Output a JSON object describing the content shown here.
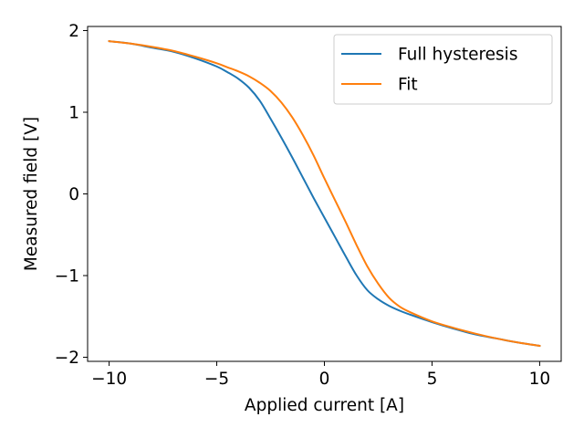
{
  "chart_data": {
    "type": "line",
    "xlabel": "Applied current [A]",
    "ylabel": "Measured field [V]",
    "xlim": [
      -11,
      11
    ],
    "ylim": [
      -2.05,
      2.05
    ],
    "xticks": [
      -10,
      -5,
      0,
      5,
      10
    ],
    "xtick_labels": [
      "−10",
      "−5",
      "0",
      "5",
      "10"
    ],
    "yticks": [
      -2,
      -1,
      0,
      1,
      2
    ],
    "ytick_labels": [
      "−2",
      "−1",
      "0",
      "1",
      "2"
    ],
    "grid": false,
    "legend_position": "top-right",
    "series": [
      {
        "name": "Full hysteresis",
        "color": "#1f77b4",
        "x": [
          -10,
          -9,
          -8,
          -7,
          -6,
          -5,
          -4.5,
          -4,
          -3.5,
          -3,
          -2.5,
          -2,
          -1.5,
          -1,
          -0.5,
          0,
          0.5,
          1,
          1.5,
          2,
          2.5,
          3,
          3.5,
          4,
          5,
          6,
          7,
          8,
          9,
          10
        ],
        "y": [
          1.87,
          1.84,
          1.79,
          1.74,
          1.66,
          1.56,
          1.49,
          1.41,
          1.3,
          1.14,
          0.92,
          0.69,
          0.45,
          0.2,
          -0.05,
          -0.29,
          -0.53,
          -0.77,
          -1.0,
          -1.18,
          -1.29,
          -1.37,
          -1.43,
          -1.48,
          -1.57,
          -1.65,
          -1.72,
          -1.77,
          -1.82,
          -1.86
        ]
      },
      {
        "name": "Fit",
        "color": "#ff7f0e",
        "x": [
          -10,
          -9,
          -8,
          -7,
          -6,
          -5,
          -4.5,
          -4,
          -3.5,
          -3,
          -2.5,
          -2,
          -1.5,
          -1,
          -0.5,
          0,
          0.5,
          1,
          1.5,
          2,
          2.5,
          3,
          3.5,
          4,
          5,
          6,
          7,
          8,
          9,
          10
        ],
        "y": [
          1.87,
          1.84,
          1.8,
          1.75,
          1.68,
          1.6,
          1.55,
          1.5,
          1.44,
          1.36,
          1.26,
          1.12,
          0.94,
          0.72,
          0.47,
          0.19,
          -0.08,
          -0.35,
          -0.63,
          -0.89,
          -1.1,
          -1.27,
          -1.38,
          -1.45,
          -1.56,
          -1.64,
          -1.71,
          -1.77,
          -1.82,
          -1.86
        ]
      }
    ]
  }
}
